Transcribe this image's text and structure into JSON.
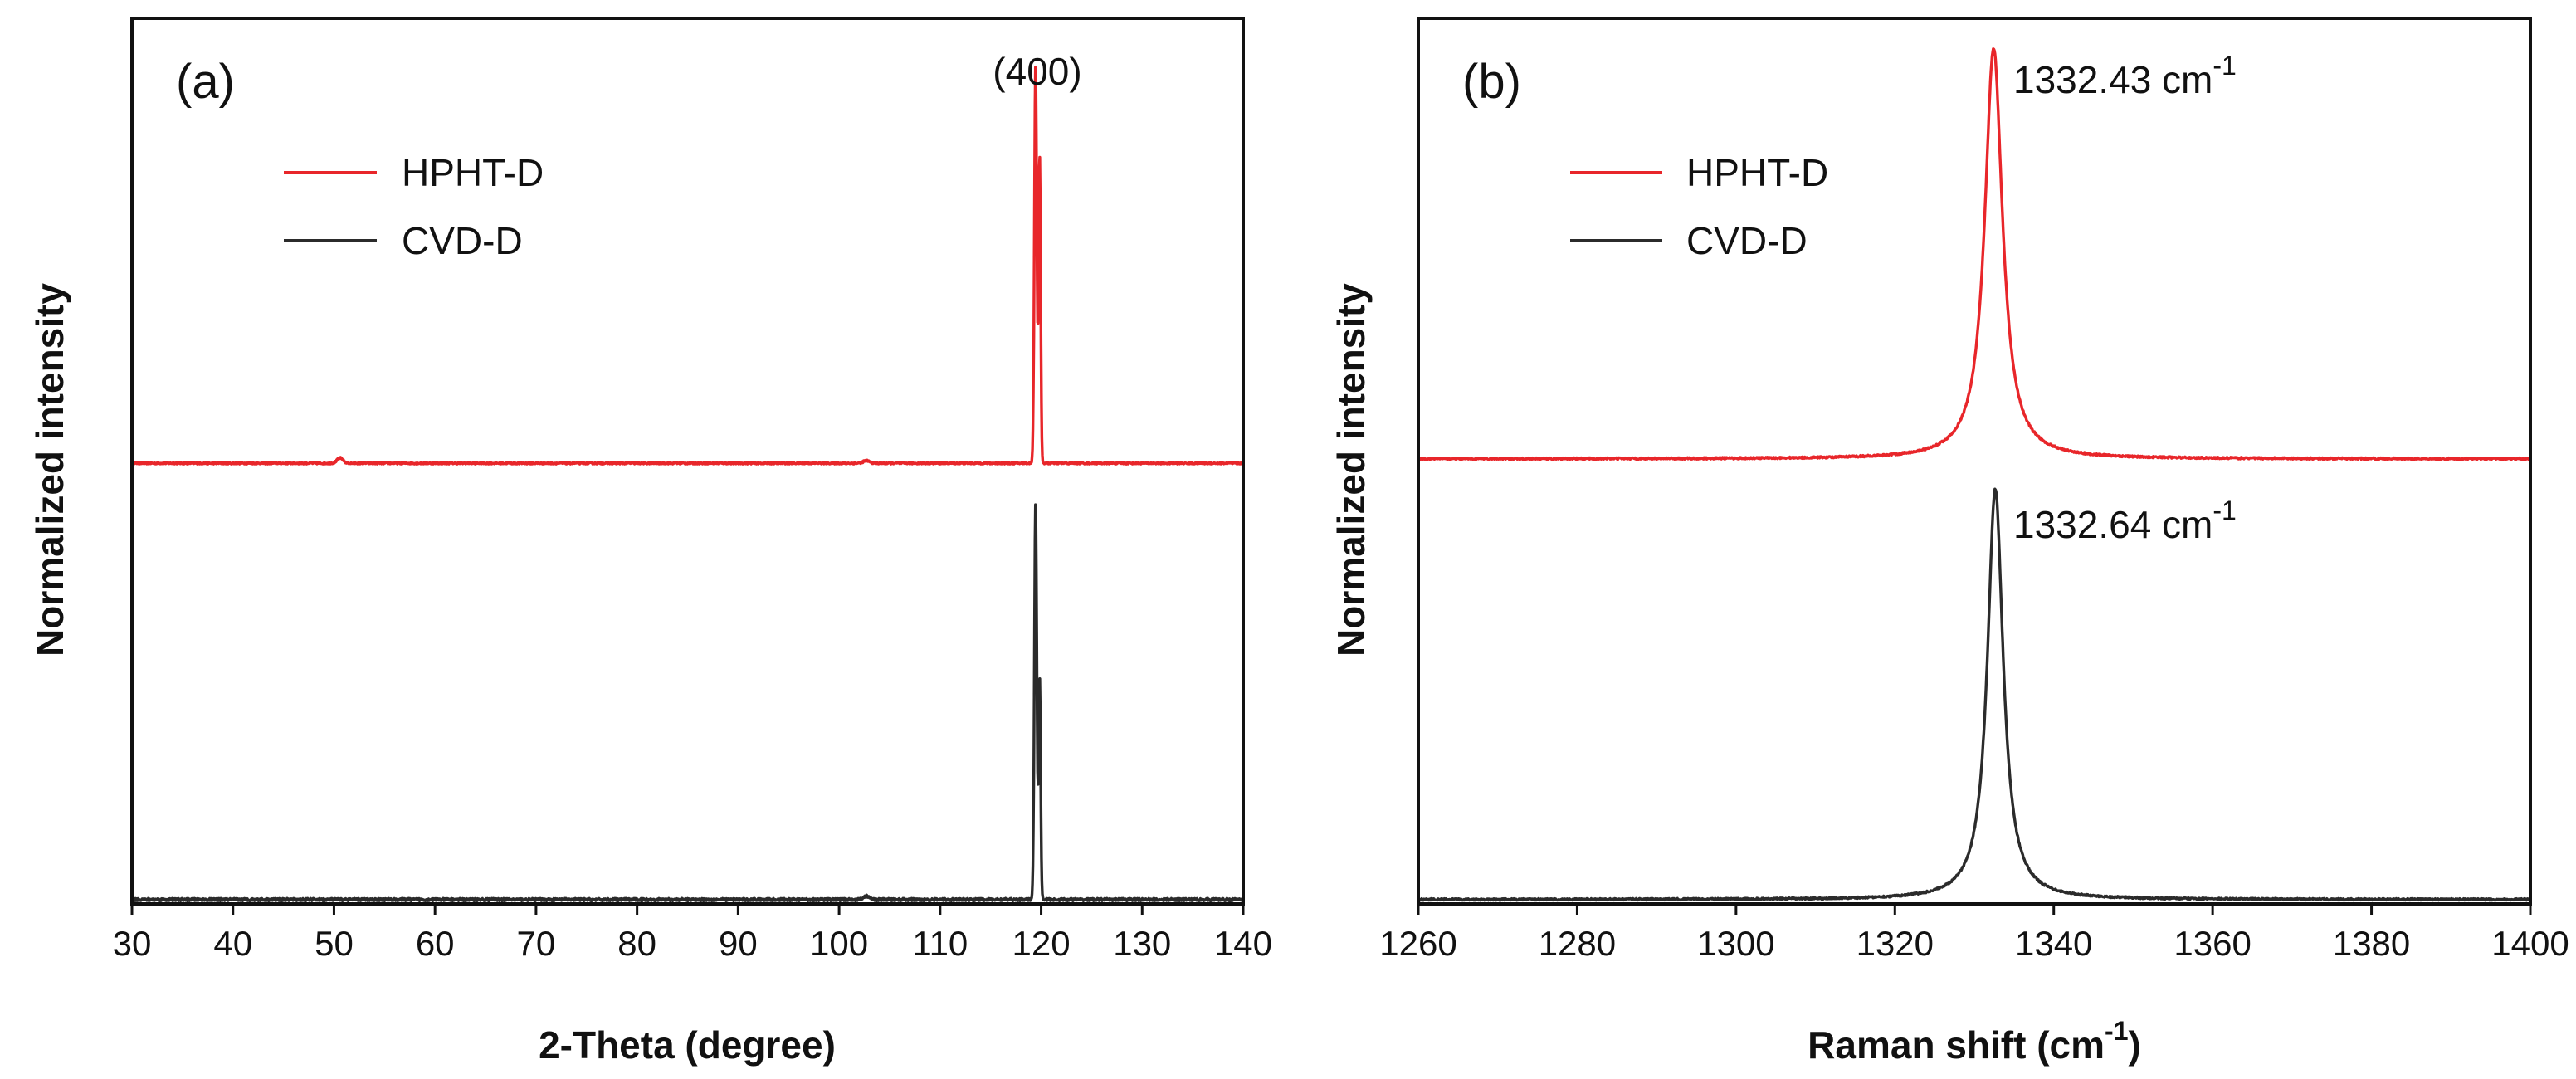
{
  "chart_data": [
    {
      "type": "line",
      "panel_label": "(a)",
      "title": "",
      "xlabel": "2-Theta (degree)",
      "ylabel": "Normalized intensity",
      "xlim": [
        30,
        140
      ],
      "ylim": [
        0,
        2.05
      ],
      "xticks": [
        30,
        40,
        50,
        60,
        70,
        80,
        90,
        100,
        110,
        120,
        130,
        140
      ],
      "y_ticks_shown": false,
      "legend": {
        "placement": "top-left",
        "entries": [
          "HPHT-D",
          "CVD-D"
        ]
      },
      "annotations": [
        {
          "text": "(400)",
          "x": 119.6,
          "y": 2.0
        }
      ],
      "series": [
        {
          "name": "HPHT-D",
          "color": "#e8262a",
          "baseline": 1.02,
          "noise": 0.002,
          "peaks": [
            {
              "center": 119.45,
              "height": 0.92,
              "width": 0.12
            },
            {
              "center": 119.85,
              "height": 0.71,
              "width": 0.1
            },
            {
              "center": 50.6,
              "height": 0.012,
              "width": 0.3
            },
            {
              "center": 102.7,
              "height": 0.006,
              "width": 0.3
            }
          ]
        },
        {
          "name": "CVD-D",
          "color": "#2b2b2b",
          "baseline": 0.01,
          "noise": 0.003,
          "peaks": [
            {
              "center": 119.45,
              "height": 0.92,
              "width": 0.12
            },
            {
              "center": 119.85,
              "height": 0.51,
              "width": 0.1
            },
            {
              "center": 102.7,
              "height": 0.008,
              "width": 0.3
            }
          ]
        }
      ]
    },
    {
      "type": "line",
      "panel_label": "(b)",
      "title": "",
      "xlabel_main": "Raman shift (cm",
      "xlabel_sup": "-1",
      "xlabel_end": ")",
      "ylabel": "Normalized intensity",
      "xlim": [
        1260,
        1400
      ],
      "ylim": [
        0,
        2.05
      ],
      "xticks": [
        1260,
        1280,
        1300,
        1320,
        1340,
        1360,
        1380,
        1400
      ],
      "y_ticks_shown": false,
      "legend": {
        "placement": "top-left",
        "entries": [
          "HPHT-D",
          "CVD-D"
        ]
      },
      "series": [
        {
          "name": "HPHT-D",
          "color": "#e8262a",
          "baseline": 1.03,
          "noise": 0.002,
          "peaks": [
            {
              "center": 1332.43,
              "height": 0.95,
              "width": 1.35,
              "shape": "lorentzian"
            }
          ],
          "annotation": {
            "text": "1332.43 cm",
            "sup": "-1"
          }
        },
        {
          "name": "CVD-D",
          "color": "#2b2b2b",
          "baseline": 0.01,
          "noise": 0.002,
          "peaks": [
            {
              "center": 1332.64,
              "height": 0.95,
              "width": 1.2,
              "shape": "lorentzian"
            }
          ],
          "annotation": {
            "text": "1332.64 cm",
            "sup": "-1"
          }
        }
      ]
    }
  ]
}
